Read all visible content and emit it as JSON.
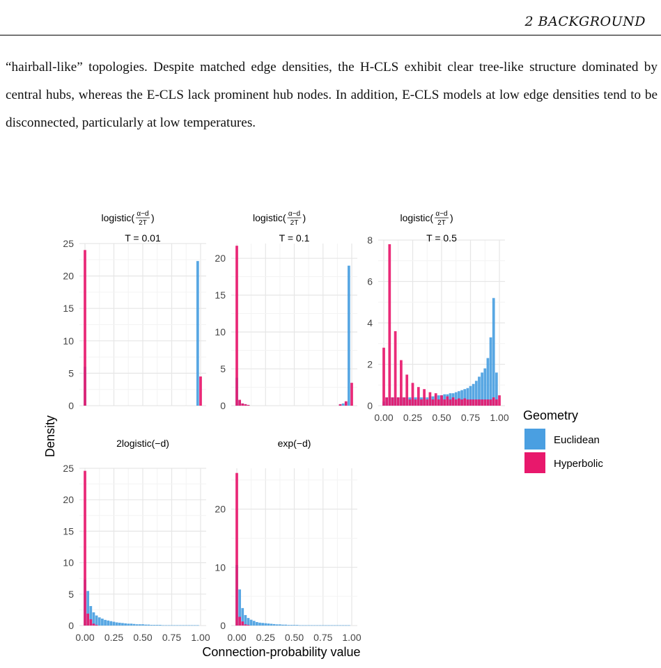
{
  "header": {
    "section": "2 BACKGROUND"
  },
  "body_text": "“hairball-like” topologies. Despite matched edge densities, the H-CLS exhibit clear tree-like structure dominated by central hubs, whereas the E-CLS lack prominent hub nodes. In addition, E-CLS models at low edge densities tend to be disconnected, particularly at low temperatures.",
  "figure": {
    "xlabel": "Connection-probability value",
    "ylabel": "Density",
    "legend_title": "Geometry",
    "series_names": [
      "Euclidean",
      "Hyperbolic"
    ],
    "x_ticks": [
      "0.00",
      "0.25",
      "0.50",
      "0.75",
      "1.00"
    ],
    "colors": {
      "euclidean": "#4A9FE1",
      "hyperbolic": "#E8186C"
    },
    "panels": [
      {
        "title_func": "logistic",
        "title_num": "α−d",
        "title_den": "2T",
        "subtitle": "T = 0.01"
      },
      {
        "title_func": "logistic",
        "title_num": "α−d",
        "title_den": "2T",
        "subtitle": "T = 0.1"
      },
      {
        "title_func": "logistic",
        "title_num": "α−d",
        "title_den": "2T",
        "subtitle": "T = 0.5"
      },
      {
        "title_func": "2logistic(−d)",
        "title_num": "",
        "title_den": "",
        "subtitle": ""
      },
      {
        "title_func": "exp(−d)",
        "title_num": "",
        "title_den": "",
        "subtitle": ""
      }
    ]
  },
  "chart_data": [
    {
      "type": "bar",
      "xlabel": "Connection-probability value",
      "ylabel": "Density",
      "ylim": [
        0,
        25
      ],
      "yticks": [
        0,
        5,
        10,
        15,
        20,
        25
      ],
      "xlim": [
        0,
        1
      ],
      "series": [
        {
          "name": "Euclidean",
          "x": [
            0.0,
            0.975
          ],
          "values": [
            6.0,
            22.3
          ]
        },
        {
          "name": "Hyperbolic",
          "x": [
            0.0,
            1.0
          ],
          "values": [
            24.0,
            4.5
          ]
        }
      ]
    },
    {
      "type": "bar",
      "xlabel": "Connection-probability value",
      "ylabel": "Density",
      "ylim": [
        0,
        22
      ],
      "yticks": [
        0,
        5,
        10,
        15,
        20
      ],
      "xlim": [
        0,
        1
      ],
      "series": [
        {
          "name": "Euclidean",
          "x": [
            0.0,
            0.025,
            0.05,
            0.075,
            0.1,
            0.9,
            0.925,
            0.95,
            0.975
          ],
          "values": [
            3.8,
            0.7,
            0.3,
            0.2,
            0.1,
            0.2,
            0.3,
            0.5,
            19.0
          ]
        },
        {
          "name": "Hyperbolic",
          "x": [
            0.0,
            0.025,
            0.05,
            0.075,
            0.1,
            0.9,
            0.95,
            1.0
          ],
          "values": [
            21.7,
            0.8,
            0.3,
            0.2,
            0.1,
            0.2,
            0.6,
            3.1
          ]
        }
      ]
    },
    {
      "type": "bar",
      "xlabel": "Connection-probability value",
      "ylabel": "Density",
      "ylim": [
        0,
        8
      ],
      "yticks": [
        0,
        2,
        4,
        6,
        8
      ],
      "xlim": [
        0,
        1
      ],
      "series": [
        {
          "name": "Euclidean",
          "x": [
            0.0,
            0.025,
            0.05,
            0.075,
            0.1,
            0.125,
            0.15,
            0.175,
            0.2,
            0.225,
            0.25,
            0.275,
            0.3,
            0.325,
            0.35,
            0.375,
            0.4,
            0.425,
            0.45,
            0.475,
            0.5,
            0.525,
            0.55,
            0.575,
            0.6,
            0.625,
            0.65,
            0.675,
            0.7,
            0.725,
            0.75,
            0.775,
            0.8,
            0.825,
            0.85,
            0.875,
            0.9,
            0.925,
            0.95,
            0.975
          ],
          "values": [
            0.2,
            0.4,
            0.4,
            0.4,
            0.4,
            0.4,
            0.4,
            0.4,
            0.4,
            0.4,
            0.4,
            0.4,
            0.4,
            0.4,
            0.4,
            0.4,
            0.45,
            0.45,
            0.5,
            0.5,
            0.5,
            0.55,
            0.55,
            0.6,
            0.6,
            0.65,
            0.7,
            0.75,
            0.8,
            0.85,
            0.95,
            1.05,
            1.2,
            1.4,
            1.6,
            1.8,
            2.3,
            3.3,
            5.2,
            1.6
          ]
        },
        {
          "name": "Hyperbolic",
          "x": [
            0.0,
            0.025,
            0.05,
            0.075,
            0.1,
            0.125,
            0.15,
            0.175,
            0.2,
            0.225,
            0.25,
            0.275,
            0.3,
            0.325,
            0.35,
            0.375,
            0.4,
            0.425,
            0.45,
            0.475,
            0.5,
            0.525,
            0.55,
            0.575,
            0.6,
            0.625,
            0.65,
            0.675,
            0.7,
            0.725,
            0.75,
            0.775,
            0.8,
            0.825,
            0.85,
            0.875,
            0.9,
            0.925,
            0.95,
            0.975,
            1.0
          ],
          "values": [
            2.8,
            0.4,
            7.8,
            0.4,
            3.6,
            0.4,
            2.2,
            0.4,
            1.5,
            0.3,
            1.1,
            0.3,
            0.9,
            0.3,
            0.8,
            0.3,
            0.65,
            0.3,
            0.6,
            0.3,
            0.5,
            0.3,
            0.45,
            0.3,
            0.4,
            0.3,
            0.35,
            0.3,
            0.35,
            0.3,
            0.3,
            0.3,
            0.3,
            0.3,
            0.3,
            0.3,
            0.3,
            0.3,
            0.4,
            0.3,
            0.5
          ]
        }
      ]
    },
    {
      "type": "bar",
      "xlabel": "Connection-probability value",
      "ylabel": "Density",
      "ylim": [
        0,
        25
      ],
      "yticks": [
        0,
        5,
        10,
        15,
        20,
        25
      ],
      "xlim": [
        0,
        1
      ],
      "series": [
        {
          "name": "Euclidean",
          "x": [
            0.0,
            0.025,
            0.05,
            0.075,
            0.1,
            0.125,
            0.15,
            0.175,
            0.2,
            0.225,
            0.25,
            0.275,
            0.3,
            0.325,
            0.35,
            0.375,
            0.4,
            0.425,
            0.45,
            0.475,
            0.5,
            0.525,
            0.55,
            0.575,
            0.6,
            0.625,
            0.65,
            0.675,
            0.7,
            0.725,
            0.75,
            0.775,
            0.8,
            0.825,
            0.85,
            0.875,
            0.9,
            0.925,
            0.95,
            0.975
          ],
          "values": [
            7.3,
            5.5,
            3.1,
            2.1,
            1.6,
            1.3,
            1.1,
            0.9,
            0.8,
            0.7,
            0.6,
            0.5,
            0.45,
            0.4,
            0.35,
            0.3,
            0.3,
            0.25,
            0.2,
            0.2,
            0.2,
            0.15,
            0.15,
            0.1,
            0.1,
            0.1,
            0.1,
            0.05,
            0.05,
            0.05,
            0.05,
            0.05,
            0.05,
            0.05,
            0.05,
            0.05,
            0.05,
            0.05,
            0.05,
            0.05
          ]
        },
        {
          "name": "Hyperbolic",
          "x": [
            0.0,
            0.025,
            0.05,
            0.075,
            0.1
          ],
          "values": [
            24.6,
            1.9,
            1.0,
            0.3,
            0.1
          ]
        }
      ]
    },
    {
      "type": "bar",
      "xlabel": "Connection-probability value",
      "ylabel": "Density",
      "ylim": [
        0,
        27
      ],
      "yticks": [
        0,
        10,
        20
      ],
      "xlim": [
        0,
        1
      ],
      "series": [
        {
          "name": "Euclidean",
          "x": [
            0.0,
            0.025,
            0.05,
            0.075,
            0.1,
            0.125,
            0.15,
            0.175,
            0.2,
            0.225,
            0.25,
            0.275,
            0.3,
            0.325,
            0.35,
            0.375,
            0.4,
            0.425,
            0.45,
            0.475,
            0.5,
            0.525,
            0.55,
            0.575,
            0.6,
            0.625,
            0.65,
            0.675,
            0.7,
            0.725,
            0.75,
            0.775,
            0.8,
            0.825,
            0.85,
            0.875,
            0.9,
            0.925,
            0.95,
            0.975
          ],
          "values": [
            10.4,
            6.2,
            3.0,
            1.8,
            1.3,
            1.0,
            0.8,
            0.6,
            0.5,
            0.45,
            0.4,
            0.35,
            0.3,
            0.25,
            0.2,
            0.2,
            0.15,
            0.15,
            0.1,
            0.1,
            0.1,
            0.1,
            0.05,
            0.05,
            0.05,
            0.05,
            0.05,
            0.05,
            0.05,
            0.05,
            0.05,
            0.05,
            0.05,
            0.05,
            0.05,
            0.05,
            0.05,
            0.05,
            0.05,
            0.05
          ]
        },
        {
          "name": "Hyperbolic",
          "x": [
            0.0,
            0.025,
            0.05,
            0.075,
            0.1
          ],
          "values": [
            26.2,
            1.5,
            0.7,
            0.2,
            0.1
          ]
        }
      ]
    }
  ]
}
